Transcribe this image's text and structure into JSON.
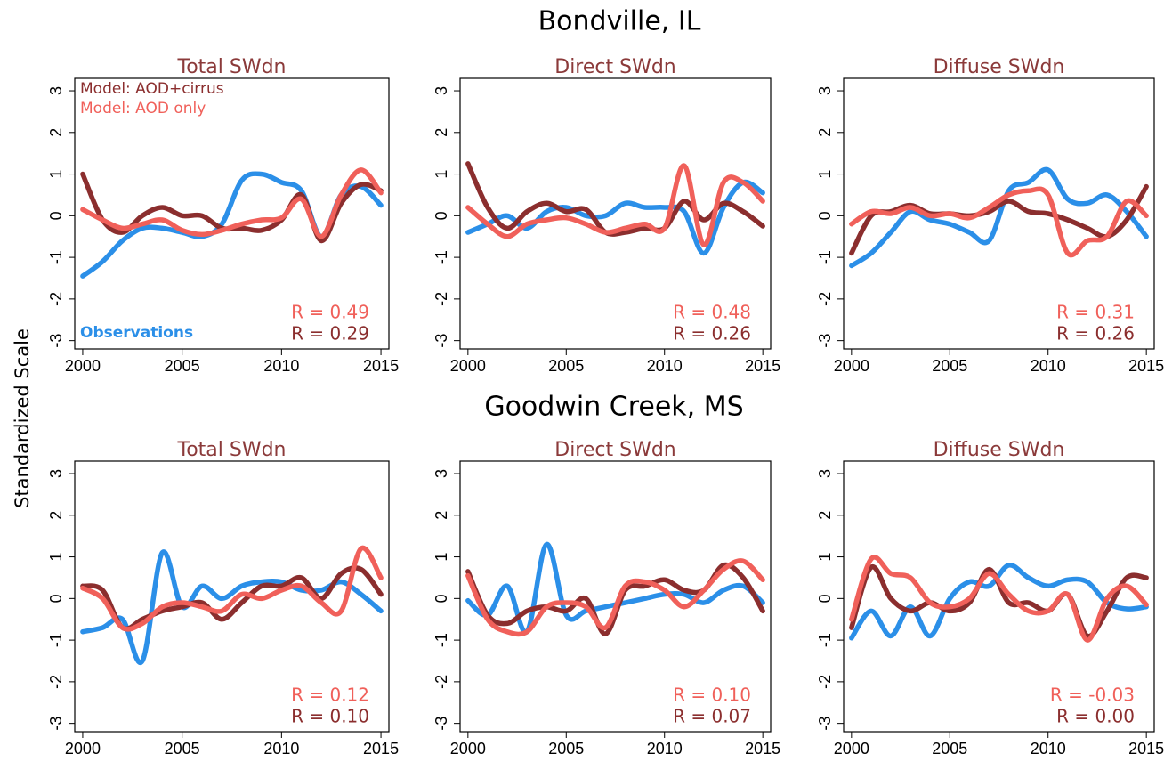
{
  "figure": {
    "row_titles": [
      "Bondville, IL",
      "Goodwin Creek, MS"
    ],
    "ylabel": "Standardized Scale"
  },
  "chart_data": [
    {
      "type": "line",
      "title": "Total SWdn",
      "x": [
        2000,
        2001,
        2002,
        2003,
        2004,
        2005,
        2006,
        2007,
        2008,
        2009,
        2010,
        2011,
        2012,
        2013,
        2014,
        2015
      ],
      "xlim": [
        1999.6,
        2015.4
      ],
      "xticks": [
        2000,
        2005,
        2010,
        2015
      ],
      "ylim": [
        -3.2,
        3.3
      ],
      "yticks": [
        -3,
        -2,
        -1,
        0,
        1,
        2,
        3
      ],
      "series": [
        {
          "name": "Observations",
          "color": "#2b8fe8",
          "values": [
            -1.45,
            -1.1,
            -0.6,
            -0.3,
            -0.3,
            -0.4,
            -0.5,
            -0.2,
            0.85,
            1.0,
            0.8,
            0.6,
            -0.5,
            0.5,
            0.7,
            0.25
          ]
        },
        {
          "name": "Model: AOD+cirrus",
          "color": "#8b2e2e",
          "values": [
            1.0,
            -0.1,
            -0.4,
            0.0,
            0.2,
            0.0,
            0.0,
            -0.3,
            -0.3,
            -0.35,
            -0.1,
            0.5,
            -0.6,
            0.3,
            0.75,
            0.6
          ]
        },
        {
          "name": "Model: AOD only",
          "color": "#f0605a",
          "values": [
            0.15,
            -0.1,
            -0.3,
            -0.2,
            -0.1,
            -0.35,
            -0.45,
            -0.35,
            -0.2,
            -0.1,
            -0.05,
            0.4,
            -0.5,
            0.5,
            1.1,
            0.55
          ]
        }
      ],
      "annotations": [
        {
          "text": "R = 0.49",
          "color": "#f0605a"
        },
        {
          "text": "R = 0.29",
          "color": "#8b2e2e"
        }
      ]
    },
    {
      "type": "line",
      "title": "Direct SWdn",
      "x": [
        2000,
        2001,
        2002,
        2003,
        2004,
        2005,
        2006,
        2007,
        2008,
        2009,
        2010,
        2011,
        2012,
        2013,
        2014,
        2015
      ],
      "xlim": [
        1999.6,
        2015.4
      ],
      "xticks": [
        2000,
        2005,
        2010,
        2015
      ],
      "ylim": [
        -3.2,
        3.3
      ],
      "yticks": [
        -3,
        -2,
        -1,
        0,
        1,
        2,
        3
      ],
      "series": [
        {
          "color": "#2b8fe8",
          "values": [
            -0.4,
            -0.2,
            0.0,
            -0.3,
            0.1,
            0.2,
            0.0,
            0.0,
            0.3,
            0.2,
            0.2,
            0.1,
            -0.9,
            0.2,
            0.8,
            0.55
          ]
        },
        {
          "color": "#8b2e2e",
          "values": [
            1.25,
            0.2,
            -0.3,
            0.1,
            0.3,
            0.1,
            0.15,
            -0.4,
            -0.4,
            -0.3,
            -0.3,
            0.35,
            -0.1,
            0.3,
            0.1,
            -0.25
          ]
        },
        {
          "color": "#f0605a",
          "values": [
            0.2,
            -0.2,
            -0.5,
            -0.2,
            -0.1,
            -0.05,
            -0.2,
            -0.4,
            -0.3,
            -0.2,
            -0.3,
            1.2,
            -0.7,
            0.8,
            0.8,
            0.35
          ]
        }
      ],
      "annotations": [
        {
          "text": "R = 0.48",
          "color": "#f0605a"
        },
        {
          "text": "R = 0.26",
          "color": "#8b2e2e"
        }
      ]
    },
    {
      "type": "line",
      "title": "Diffuse SWdn",
      "x": [
        2000,
        2001,
        2002,
        2003,
        2004,
        2005,
        2006,
        2007,
        2008,
        2009,
        2010,
        2011,
        2012,
        2013,
        2014,
        2015
      ],
      "xlim": [
        1999.6,
        2015.4
      ],
      "xticks": [
        2000,
        2005,
        2010,
        2015
      ],
      "ylim": [
        -3.2,
        3.3
      ],
      "yticks": [
        -3,
        -2,
        -1,
        0,
        1,
        2,
        3
      ],
      "series": [
        {
          "color": "#2b8fe8",
          "values": [
            -1.2,
            -0.9,
            -0.4,
            0.1,
            -0.1,
            -0.2,
            -0.4,
            -0.6,
            0.6,
            0.8,
            1.1,
            0.4,
            0.3,
            0.5,
            0.1,
            -0.5
          ]
        },
        {
          "color": "#8b2e2e",
          "values": [
            -0.9,
            0.0,
            0.1,
            0.25,
            0.05,
            0.05,
            0.0,
            0.1,
            0.35,
            0.1,
            0.05,
            -0.1,
            -0.3,
            -0.5,
            -0.1,
            0.7
          ]
        },
        {
          "color": "#f0605a",
          "values": [
            -0.2,
            0.1,
            0.05,
            0.2,
            0.0,
            0.05,
            -0.05,
            0.2,
            0.5,
            0.6,
            0.5,
            -0.9,
            -0.6,
            -0.5,
            0.35,
            0.0
          ]
        }
      ],
      "annotations": [
        {
          "text": "R = 0.31",
          "color": "#f0605a"
        },
        {
          "text": "R = 0.26",
          "color": "#8b2e2e"
        }
      ]
    },
    {
      "type": "line",
      "title": "Total SWdn",
      "x": [
        2000,
        2001,
        2002,
        2003,
        2004,
        2005,
        2006,
        2007,
        2008,
        2009,
        2010,
        2011,
        2012,
        2013,
        2014,
        2015
      ],
      "xlim": [
        1999.6,
        2015.4
      ],
      "xticks": [
        2000,
        2005,
        2010,
        2015
      ],
      "ylim": [
        -3.2,
        3.3
      ],
      "yticks": [
        -3,
        -2,
        -1,
        0,
        1,
        2,
        3
      ],
      "series": [
        {
          "color": "#2b8fe8",
          "values": [
            -0.8,
            -0.7,
            -0.5,
            -1.5,
            1.1,
            -0.2,
            0.3,
            0.0,
            0.3,
            0.4,
            0.4,
            0.2,
            0.2,
            0.4,
            0.1,
            -0.3
          ]
        },
        {
          "color": "#8b2e2e",
          "values": [
            0.3,
            0.2,
            -0.7,
            -0.5,
            -0.3,
            -0.2,
            -0.1,
            -0.5,
            -0.1,
            0.3,
            0.3,
            0.5,
            0.0,
            0.6,
            0.7,
            0.1
          ]
        },
        {
          "color": "#f0605a",
          "values": [
            0.25,
            0.0,
            -0.7,
            -0.6,
            -0.2,
            -0.1,
            -0.2,
            -0.3,
            0.1,
            0.0,
            0.2,
            0.3,
            -0.1,
            -0.3,
            1.2,
            0.5
          ]
        }
      ],
      "annotations": [
        {
          "text": "R = 0.12",
          "color": "#f0605a"
        },
        {
          "text": "R = 0.10",
          "color": "#8b2e2e"
        }
      ]
    },
    {
      "type": "line",
      "title": "Direct SWdn",
      "x": [
        2000,
        2001,
        2002,
        2003,
        2004,
        2005,
        2006,
        2007,
        2008,
        2009,
        2010,
        2011,
        2012,
        2013,
        2014,
        2015
      ],
      "xlim": [
        1999.6,
        2015.4
      ],
      "xticks": [
        2000,
        2005,
        2010,
        2015
      ],
      "ylim": [
        -3.2,
        3.3
      ],
      "yticks": [
        -3,
        -2,
        -1,
        0,
        1,
        2,
        3
      ],
      "series": [
        {
          "color": "#2b8fe8",
          "values": [
            -0.05,
            -0.4,
            0.3,
            -0.8,
            1.3,
            -0.4,
            -0.3,
            -0.2,
            -0.1,
            0.0,
            0.1,
            0.1,
            -0.1,
            0.2,
            0.3,
            -0.1
          ]
        },
        {
          "color": "#8b2e2e",
          "values": [
            0.65,
            -0.4,
            -0.6,
            -0.3,
            -0.2,
            -0.3,
            0.0,
            -0.85,
            0.2,
            0.3,
            0.45,
            0.2,
            0.2,
            0.8,
            0.5,
            -0.3
          ]
        },
        {
          "color": "#f0605a",
          "values": [
            0.55,
            -0.5,
            -0.8,
            -0.8,
            -0.2,
            -0.1,
            -0.2,
            -0.7,
            0.3,
            0.4,
            0.2,
            -0.2,
            0.2,
            0.7,
            0.9,
            0.45
          ]
        }
      ],
      "annotations": [
        {
          "text": "R = 0.10",
          "color": "#f0605a"
        },
        {
          "text": "R = 0.07",
          "color": "#8b2e2e"
        }
      ]
    },
    {
      "type": "line",
      "title": "Diffuse SWdn",
      "x": [
        2000,
        2001,
        2002,
        2003,
        2004,
        2005,
        2006,
        2007,
        2008,
        2009,
        2010,
        2011,
        2012,
        2013,
        2014,
        2015
      ],
      "xlim": [
        1999.6,
        2015.4
      ],
      "xticks": [
        2000,
        2005,
        2010,
        2015
      ],
      "ylim": [
        -3.2,
        3.3
      ],
      "yticks": [
        -3,
        -2,
        -1,
        0,
        1,
        2,
        3
      ],
      "series": [
        {
          "color": "#2b8fe8",
          "values": [
            -0.95,
            -0.3,
            -0.9,
            -0.2,
            -0.9,
            0.0,
            0.4,
            0.3,
            0.8,
            0.5,
            0.3,
            0.45,
            0.4,
            -0.1,
            -0.25,
            -0.2
          ]
        },
        {
          "color": "#8b2e2e",
          "values": [
            -0.7,
            0.75,
            0.0,
            -0.3,
            -0.1,
            -0.3,
            -0.1,
            0.7,
            -0.1,
            -0.1,
            -0.3,
            0.1,
            -0.9,
            -0.3,
            0.5,
            0.5
          ]
        },
        {
          "color": "#f0605a",
          "values": [
            -0.5,
            0.95,
            0.6,
            0.5,
            -0.1,
            -0.2,
            0.0,
            0.6,
            0.1,
            -0.3,
            -0.3,
            0.1,
            -1.0,
            0.0,
            0.3,
            -0.15
          ]
        }
      ],
      "annotations": [
        {
          "text": "R = -0.03",
          "color": "#f0605a"
        },
        {
          "text": "R = 0.00",
          "color": "#8b2e2e"
        }
      ]
    }
  ]
}
